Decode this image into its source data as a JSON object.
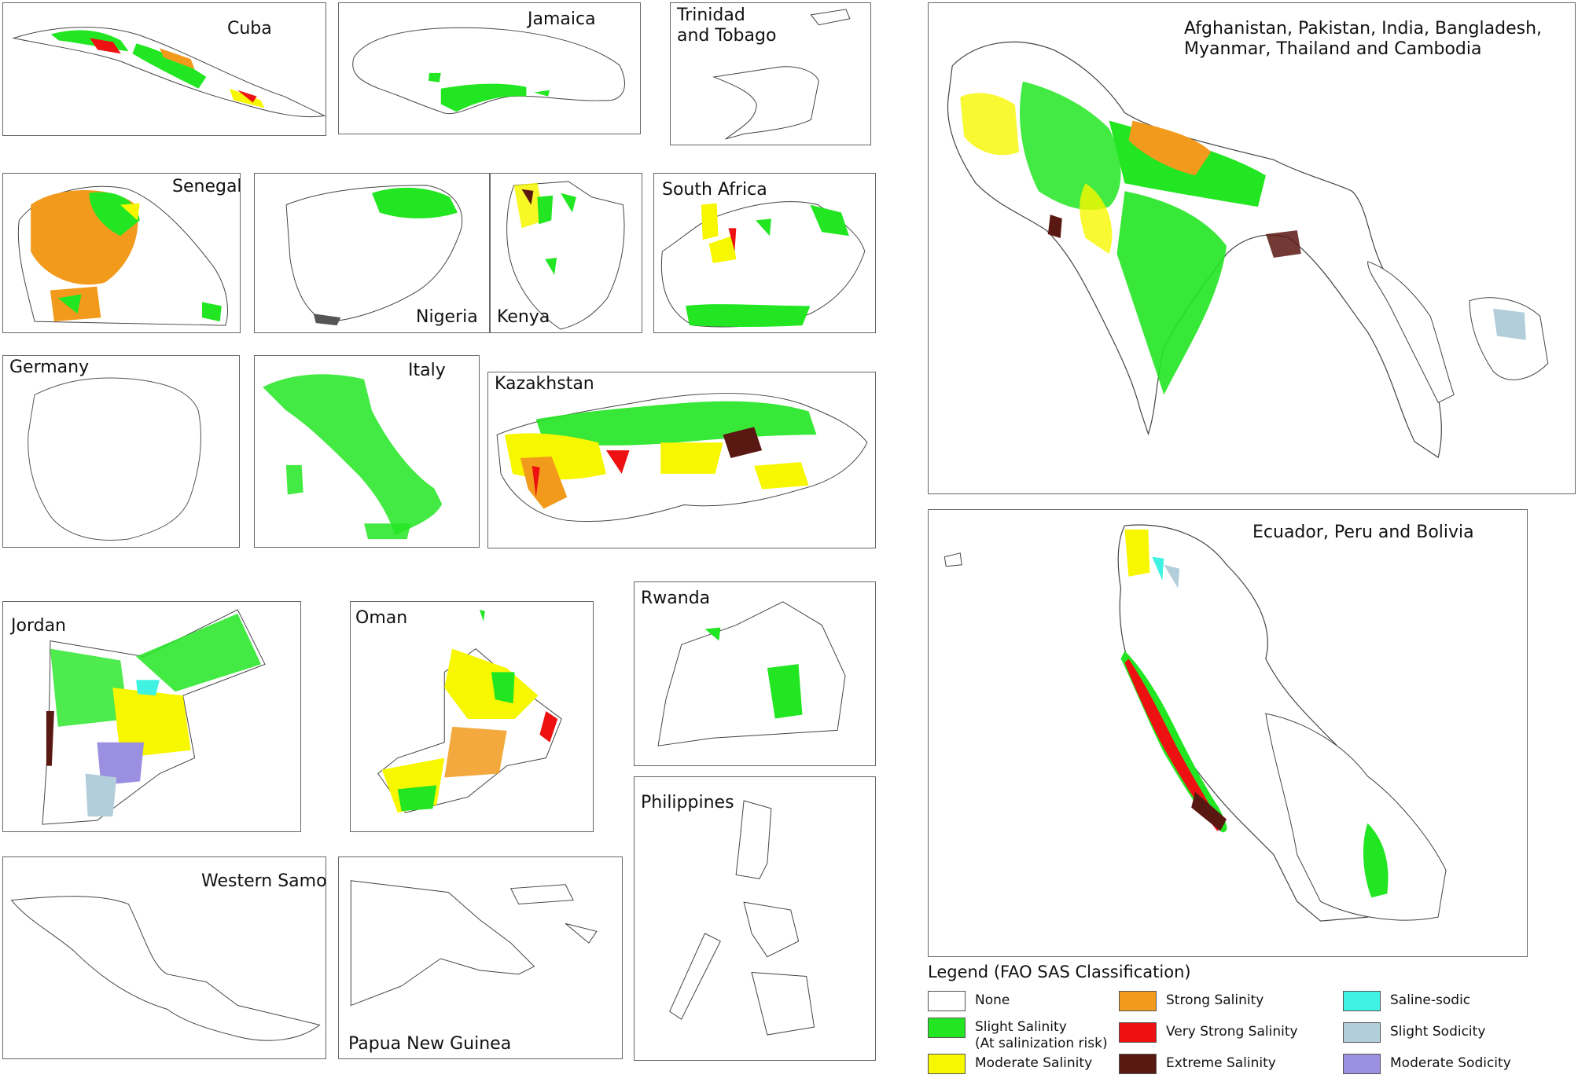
{
  "panels": {
    "cuba": "Cuba",
    "jamaica": "Jamaica",
    "trinidad": "Trinidad\nand Tobago",
    "south_asia": "Afghanistan,    Pakistan,    India,    Bangladesh,\nMyanmar, Thailand and Cambodia",
    "senegal": "Senegal",
    "nigeria": "Nigeria",
    "kenya": "Kenya",
    "south_africa": "South Africa",
    "germany": "Germany",
    "italy": "Italy",
    "kazakhstan": "Kazakhstan",
    "jordan": "Jordan",
    "oman": "Oman",
    "rwanda": "Rwanda",
    "philippines": "Philippines",
    "western_samoa": "Western Samoa",
    "png": "Papua New Guinea",
    "andes": "Ecuador, Peru and Bolivia"
  },
  "legend": {
    "title": "Legend (FAO SAS Classification)",
    "items": [
      {
        "label": "None",
        "color": "#ffffff"
      },
      {
        "label": "Slight Salinity",
        "label2": "(At salinization risk)",
        "color": "#22e622"
      },
      {
        "label": "Moderate Salinity",
        "color": "#f7f700"
      },
      {
        "label": "Strong Salinity",
        "color": "#f29a1c"
      },
      {
        "label": "Very Strong Salinity",
        "color": "#ee1111"
      },
      {
        "label": "Extreme Salinity",
        "color": "#5a1812"
      },
      {
        "label": "Saline-sodic",
        "color": "#3ff2e2"
      },
      {
        "label": "Slight Sodicity",
        "color": "#b3cedb"
      },
      {
        "label": "Moderate Sodicity",
        "color": "#9a8fe0"
      }
    ]
  }
}
